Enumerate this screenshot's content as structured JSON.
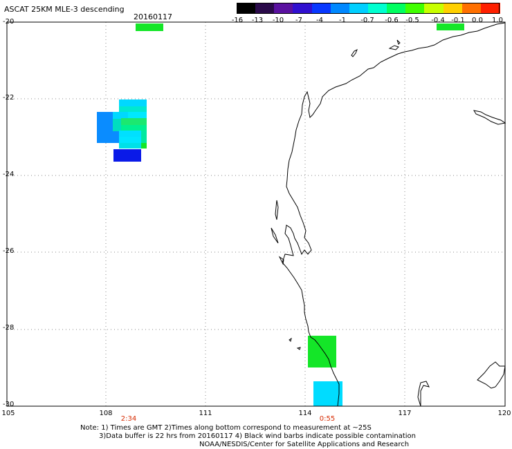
{
  "header": {
    "title": "ASCAT 25KM MLE-3 descending",
    "date": "20160117"
  },
  "colorbar": {
    "labels": [
      "-16",
      "-13",
      "-10",
      "-7",
      "-4",
      "-1",
      "-0.7",
      "-0.6",
      "-0.5",
      "-0.4",
      "-0.1",
      "0.0",
      "1.0"
    ],
    "colors": [
      "#000000",
      "#2a0a4a",
      "#5a11a0",
      "#3010d0",
      "#0838ff",
      "#0088ff",
      "#00cfff",
      "#00ffd0",
      "#00ff60",
      "#40ff00",
      "#c8ff00",
      "#ffd000",
      "#ff7000",
      "#ff2000"
    ]
  },
  "axes": {
    "lat_labels": [
      "-20",
      "-22",
      "-24",
      "-26",
      "-28",
      "-30"
    ],
    "lon_labels": [
      "105",
      "108",
      "111",
      "114",
      "117",
      "120"
    ]
  },
  "pass_times": [
    "2:34",
    "0:55"
  ],
  "notes": {
    "line1": "Note: 1) Times are GMT 2)Times along bottom correspond to measurement at ~25S",
    "line2": "3)Data buffer is 22 hrs from 20160117 4) Black wind barbs indicate possible contamination",
    "line3": "NOAA/NESDIS/Center for Satellite Applications and Research"
  }
}
